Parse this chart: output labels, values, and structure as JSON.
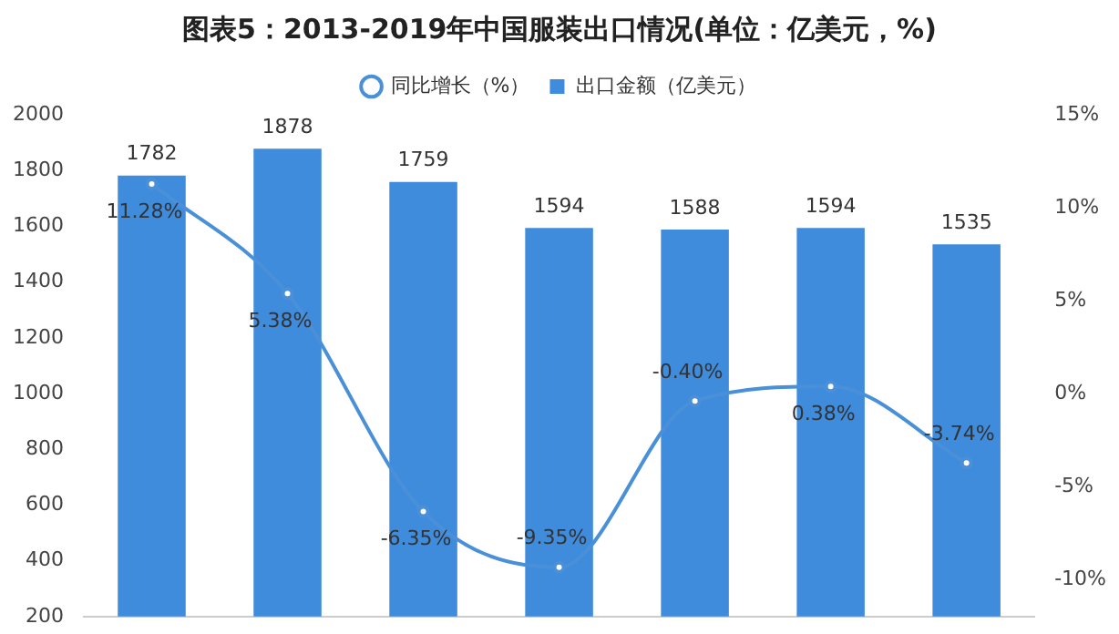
{
  "chart_data": {
    "type": "bar",
    "title": "图表5：2013-2019年中国服装出口情况(单位：亿美元，%)",
    "categories": [
      null,
      null,
      null,
      null,
      null,
      null,
      null
    ],
    "series": [
      {
        "name": "出口金额（亿美元）",
        "color": "#3f8bdc",
        "values": [
          1782,
          1878,
          1759,
          1594,
          1588,
          1594,
          1535
        ]
      },
      {
        "name": "同比增长（%）",
        "type": "line",
        "axis": "y2",
        "color": "#4a90d9",
        "values": [
          11.28,
          5.38,
          -6.35,
          -9.35,
          -0.4,
          0.38,
          -3.74
        ],
        "value_labels": [
          "11.28%",
          "5.38%",
          "-6.35%",
          "-9.35%",
          "-0.40%",
          "0.38%",
          "-3.74%"
        ]
      }
    ],
    "ylim": [
      200,
      2000
    ],
    "yticks": [
      200,
      400,
      600,
      800,
      1000,
      1200,
      1400,
      1600,
      1800,
      2000
    ],
    "y2lim": [
      -12,
      15
    ],
    "y2ticks": [
      {
        "value": -10,
        "label": "-10%"
      },
      {
        "value": -5,
        "label": "-5%"
      },
      {
        "value": 0,
        "label": "0%"
      },
      {
        "value": 5,
        "label": "5%"
      },
      {
        "value": 10,
        "label": "10%"
      },
      {
        "value": 15,
        "label": "15%"
      }
    ],
    "data_labels": true,
    "legend": "top",
    "grid": false,
    "marker": "circle",
    "line_style": "solid"
  }
}
